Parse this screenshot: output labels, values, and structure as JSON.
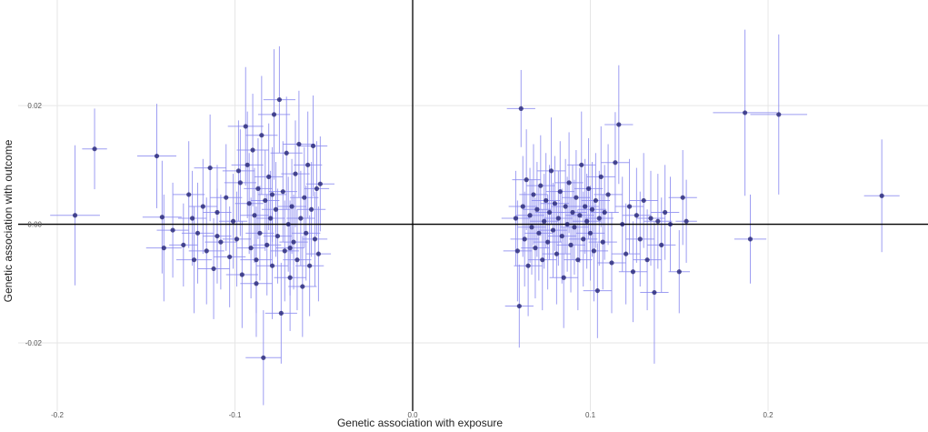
{
  "chart_data": {
    "type": "scatter",
    "title": "",
    "xlabel": "Genetic association with exposure",
    "ylabel": "Genetic association with outcome",
    "xlim": [
      -0.222,
      0.29
    ],
    "ylim": [
      -0.0315,
      0.0378
    ],
    "x_ticks": [
      -0.2,
      -0.1,
      0.0,
      0.1,
      0.2
    ],
    "x_tick_labels": [
      "-0.2",
      "-0.1",
      "0.0",
      "0.1",
      "0.2"
    ],
    "y_ticks": [
      -0.02,
      0.0,
      0.02
    ],
    "y_tick_labels": [
      "-0.02",
      "0.00",
      "0.02"
    ],
    "grid": true,
    "reference_lines": {
      "x": 0,
      "y": 0
    },
    "colors": {
      "point": "#1a1a6e",
      "errorbar": "#8c8cf0",
      "grid": "#e6e6e6",
      "zero_line": "#000000"
    },
    "series": [
      {
        "points": [
          {
            "x": -0.19,
            "y": 0.0015,
            "xerr": 0.014,
            "yerr": 0.0118
          },
          {
            "x": -0.179,
            "y": 0.0127,
            "xerr": 0.007,
            "yerr": 0.0068
          },
          {
            "x": -0.144,
            "y": 0.0115,
            "xerr": 0.011,
            "yerr": 0.0088
          },
          {
            "x": -0.141,
            "y": 0.0012,
            "xerr": 0.011,
            "yerr": 0.0095
          },
          {
            "x": -0.14,
            "y": -0.004,
            "xerr": 0.01,
            "yerr": 0.009
          },
          {
            "x": -0.135,
            "y": -0.001,
            "xerr": 0.009,
            "yerr": 0.008
          },
          {
            "x": -0.129,
            "y": -0.0035,
            "xerr": 0.008,
            "yerr": 0.007
          },
          {
            "x": -0.126,
            "y": 0.005,
            "xerr": 0.009,
            "yerr": 0.009
          },
          {
            "x": -0.124,
            "y": 0.001,
            "xerr": 0.008,
            "yerr": 0.008
          },
          {
            "x": -0.123,
            "y": -0.006,
            "xerr": 0.01,
            "yerr": 0.009
          },
          {
            "x": -0.121,
            "y": -0.0015,
            "xerr": 0.009,
            "yerr": 0.0085
          },
          {
            "x": -0.118,
            "y": 0.003,
            "xerr": 0.008,
            "yerr": 0.008
          },
          {
            "x": -0.116,
            "y": -0.0045,
            "xerr": 0.01,
            "yerr": 0.009
          },
          {
            "x": -0.114,
            "y": 0.0095,
            "xerr": 0.009,
            "yerr": 0.009
          },
          {
            "x": -0.112,
            "y": -0.0075,
            "xerr": 0.009,
            "yerr": 0.0085
          },
          {
            "x": -0.11,
            "y": 0.002,
            "xerr": 0.008,
            "yerr": 0.008
          },
          {
            "x": -0.108,
            "y": -0.003,
            "xerr": 0.009,
            "yerr": 0.008
          },
          {
            "x": -0.105,
            "y": 0.0045,
            "xerr": 0.009,
            "yerr": 0.009
          },
          {
            "x": -0.103,
            "y": -0.0055,
            "xerr": 0.009,
            "yerr": 0.0085
          },
          {
            "x": -0.101,
            "y": 0.0005,
            "xerr": 0.008,
            "yerr": 0.008
          },
          {
            "x": -0.099,
            "y": -0.0025,
            "xerr": 0.008,
            "yerr": 0.008
          },
          {
            "x": -0.097,
            "y": 0.007,
            "xerr": 0.009,
            "yerr": 0.009
          },
          {
            "x": -0.096,
            "y": -0.0085,
            "xerr": 0.009,
            "yerr": 0.009
          },
          {
            "x": -0.094,
            "y": 0.0165,
            "xerr": 0.01,
            "yerr": 0.01
          },
          {
            "x": -0.093,
            "y": 0.01,
            "xerr": 0.009,
            "yerr": 0.009
          },
          {
            "x": -0.092,
            "y": 0.0035,
            "xerr": 0.008,
            "yerr": 0.0085
          },
          {
            "x": -0.091,
            "y": -0.004,
            "xerr": 0.008,
            "yerr": 0.0085
          },
          {
            "x": -0.09,
            "y": 0.0125,
            "xerr": 0.009,
            "yerr": 0.0095
          },
          {
            "x": -0.089,
            "y": 0.0015,
            "xerr": 0.008,
            "yerr": 0.008
          },
          {
            "x": -0.088,
            "y": -0.006,
            "xerr": 0.009,
            "yerr": 0.009
          },
          {
            "x": -0.087,
            "y": 0.006,
            "xerr": 0.008,
            "yerr": 0.0085
          },
          {
            "x": -0.086,
            "y": -0.0015,
            "xerr": 0.008,
            "yerr": 0.008
          },
          {
            "x": -0.085,
            "y": 0.015,
            "xerr": 0.009,
            "yerr": 0.01
          },
          {
            "x": -0.084,
            "y": -0.0225,
            "xerr": 0.01,
            "yerr": 0.008
          },
          {
            "x": -0.083,
            "y": 0.004,
            "xerr": 0.008,
            "yerr": 0.0085
          },
          {
            "x": -0.082,
            "y": -0.0035,
            "xerr": 0.008,
            "yerr": 0.0085
          },
          {
            "x": -0.081,
            "y": 0.008,
            "xerr": 0.008,
            "yerr": 0.009
          },
          {
            "x": -0.08,
            "y": 0.001,
            "xerr": 0.008,
            "yerr": 0.008
          },
          {
            "x": -0.079,
            "y": -0.007,
            "xerr": 0.009,
            "yerr": 0.009
          },
          {
            "x": -0.078,
            "y": 0.0185,
            "xerr": 0.009,
            "yerr": 0.011
          },
          {
            "x": -0.077,
            "y": 0.0025,
            "xerr": 0.008,
            "yerr": 0.008
          },
          {
            "x": -0.076,
            "y": -0.002,
            "xerr": 0.008,
            "yerr": 0.008
          },
          {
            "x": -0.075,
            "y": 0.021,
            "xerr": 0.009,
            "yerr": 0.009
          },
          {
            "x": -0.074,
            "y": -0.015,
            "xerr": 0.009,
            "yerr": 0.0085
          },
          {
            "x": -0.073,
            "y": 0.0055,
            "xerr": 0.008,
            "yerr": 0.0085
          },
          {
            "x": -0.072,
            "y": -0.0045,
            "xerr": 0.008,
            "yerr": 0.0085
          },
          {
            "x": -0.071,
            "y": 0.012,
            "xerr": 0.009,
            "yerr": 0.0095
          },
          {
            "x": -0.07,
            "y": 0.0,
            "xerr": 0.008,
            "yerr": 0.008
          },
          {
            "x": -0.069,
            "y": -0.009,
            "xerr": 0.009,
            "yerr": 0.009
          },
          {
            "x": -0.068,
            "y": 0.003,
            "xerr": 0.008,
            "yerr": 0.008
          },
          {
            "x": -0.067,
            "y": -0.003,
            "xerr": 0.008,
            "yerr": 0.008
          },
          {
            "x": -0.066,
            "y": 0.0085,
            "xerr": 0.008,
            "yerr": 0.009
          },
          {
            "x": -0.065,
            "y": -0.006,
            "xerr": 0.008,
            "yerr": 0.0085
          },
          {
            "x": -0.064,
            "y": 0.0135,
            "xerr": 0.009,
            "yerr": 0.009
          },
          {
            "x": -0.063,
            "y": 0.001,
            "xerr": 0.008,
            "yerr": 0.008
          },
          {
            "x": -0.062,
            "y": -0.0105,
            "xerr": 0.008,
            "yerr": 0.0085
          },
          {
            "x": -0.061,
            "y": 0.0045,
            "xerr": 0.008,
            "yerr": 0.0085
          },
          {
            "x": -0.06,
            "y": -0.0015,
            "xerr": 0.008,
            "yerr": 0.008
          },
          {
            "x": -0.059,
            "y": 0.01,
            "xerr": 0.008,
            "yerr": 0.009
          },
          {
            "x": -0.058,
            "y": -0.007,
            "xerr": 0.008,
            "yerr": 0.0085
          },
          {
            "x": -0.057,
            "y": 0.0025,
            "xerr": 0.008,
            "yerr": 0.008
          },
          {
            "x": -0.056,
            "y": 0.0132,
            "xerr": 0.008,
            "yerr": 0.0085
          },
          {
            "x": -0.055,
            "y": -0.0025,
            "xerr": 0.007,
            "yerr": 0.008
          },
          {
            "x": -0.054,
            "y": 0.006,
            "xerr": 0.007,
            "yerr": 0.008
          },
          {
            "x": -0.053,
            "y": -0.005,
            "xerr": 0.007,
            "yerr": 0.008
          },
          {
            "x": -0.052,
            "y": 0.0068,
            "xerr": 0.008,
            "yerr": 0.008
          },
          {
            "x": -0.11,
            "y": -0.002,
            "xerr": 0.008,
            "yerr": 0.008
          },
          {
            "x": -0.098,
            "y": 0.009,
            "xerr": 0.009,
            "yerr": 0.0085
          },
          {
            "x": -0.088,
            "y": -0.01,
            "xerr": 0.009,
            "yerr": 0.009
          },
          {
            "x": -0.079,
            "y": 0.005,
            "xerr": 0.008,
            "yerr": 0.008
          },
          {
            "x": -0.069,
            "y": -0.004,
            "xerr": 0.008,
            "yerr": 0.008
          },
          {
            "x": 0.058,
            "y": 0.001,
            "xerr": 0.008,
            "yerr": 0.008
          },
          {
            "x": 0.059,
            "y": -0.0045,
            "xerr": 0.008,
            "yerr": 0.0085
          },
          {
            "x": 0.06,
            "y": -0.0138,
            "xerr": 0.008,
            "yerr": 0.007
          },
          {
            "x": 0.061,
            "y": 0.0195,
            "xerr": 0.008,
            "yerr": 0.0065
          },
          {
            "x": 0.062,
            "y": 0.003,
            "xerr": 0.008,
            "yerr": 0.0085
          },
          {
            "x": 0.063,
            "y": -0.0025,
            "xerr": 0.008,
            "yerr": 0.008
          },
          {
            "x": 0.064,
            "y": 0.0075,
            "xerr": 0.008,
            "yerr": 0.0085
          },
          {
            "x": 0.065,
            "y": -0.007,
            "xerr": 0.008,
            "yerr": 0.0085
          },
          {
            "x": 0.066,
            "y": 0.0015,
            "xerr": 0.008,
            "yerr": 0.008
          },
          {
            "x": 0.067,
            "y": -0.0005,
            "xerr": 0.008,
            "yerr": 0.008
          },
          {
            "x": 0.068,
            "y": 0.005,
            "xerr": 0.008,
            "yerr": 0.0085
          },
          {
            "x": 0.069,
            "y": -0.004,
            "xerr": 0.008,
            "yerr": 0.0085
          },
          {
            "x": 0.07,
            "y": 0.0025,
            "xerr": 0.008,
            "yerr": 0.008
          },
          {
            "x": 0.071,
            "y": -0.0015,
            "xerr": 0.008,
            "yerr": 0.008
          },
          {
            "x": 0.072,
            "y": 0.0065,
            "xerr": 0.008,
            "yerr": 0.0085
          },
          {
            "x": 0.073,
            "y": -0.006,
            "xerr": 0.008,
            "yerr": 0.0085
          },
          {
            "x": 0.074,
            "y": 0.0005,
            "xerr": 0.008,
            "yerr": 0.008
          },
          {
            "x": 0.075,
            "y": 0.004,
            "xerr": 0.008,
            "yerr": 0.008
          },
          {
            "x": 0.076,
            "y": -0.003,
            "xerr": 0.008,
            "yerr": 0.008
          },
          {
            "x": 0.077,
            "y": 0.002,
            "xerr": 0.008,
            "yerr": 0.008
          },
          {
            "x": 0.078,
            "y": 0.009,
            "xerr": 0.008,
            "yerr": 0.009
          },
          {
            "x": 0.079,
            "y": -0.001,
            "xerr": 0.008,
            "yerr": 0.008
          },
          {
            "x": 0.08,
            "y": 0.0035,
            "xerr": 0.008,
            "yerr": 0.008
          },
          {
            "x": 0.081,
            "y": -0.005,
            "xerr": 0.008,
            "yerr": 0.0085
          },
          {
            "x": 0.082,
            "y": 0.001,
            "xerr": 0.008,
            "yerr": 0.008
          },
          {
            "x": 0.083,
            "y": 0.0055,
            "xerr": 0.008,
            "yerr": 0.0085
          },
          {
            "x": 0.084,
            "y": -0.002,
            "xerr": 0.008,
            "yerr": 0.008
          },
          {
            "x": 0.085,
            "y": -0.009,
            "xerr": 0.008,
            "yerr": 0.0085
          },
          {
            "x": 0.086,
            "y": 0.003,
            "xerr": 0.008,
            "yerr": 0.008
          },
          {
            "x": 0.087,
            "y": 0.0,
            "xerr": 0.008,
            "yerr": 0.008
          },
          {
            "x": 0.088,
            "y": 0.007,
            "xerr": 0.008,
            "yerr": 0.0085
          },
          {
            "x": 0.089,
            "y": -0.0035,
            "xerr": 0.008,
            "yerr": 0.008
          },
          {
            "x": 0.09,
            "y": 0.002,
            "xerr": 0.008,
            "yerr": 0.008
          },
          {
            "x": 0.091,
            "y": -0.0005,
            "xerr": 0.008,
            "yerr": 0.008
          },
          {
            "x": 0.092,
            "y": 0.0045,
            "xerr": 0.008,
            "yerr": 0.008
          },
          {
            "x": 0.093,
            "y": -0.006,
            "xerr": 0.008,
            "yerr": 0.0085
          },
          {
            "x": 0.094,
            "y": 0.0015,
            "xerr": 0.008,
            "yerr": 0.008
          },
          {
            "x": 0.095,
            "y": 0.01,
            "xerr": 0.008,
            "yerr": 0.009
          },
          {
            "x": 0.096,
            "y": -0.0025,
            "xerr": 0.008,
            "yerr": 0.008
          },
          {
            "x": 0.097,
            "y": 0.003,
            "xerr": 0.008,
            "yerr": 0.008
          },
          {
            "x": 0.098,
            "y": 0.0005,
            "xerr": 0.008,
            "yerr": 0.008
          },
          {
            "x": 0.099,
            "y": 0.006,
            "xerr": 0.008,
            "yerr": 0.0085
          },
          {
            "x": 0.1,
            "y": -0.0015,
            "xerr": 0.008,
            "yerr": 0.008
          },
          {
            "x": 0.101,
            "y": 0.0025,
            "xerr": 0.008,
            "yerr": 0.008
          },
          {
            "x": 0.102,
            "y": -0.0045,
            "xerr": 0.008,
            "yerr": 0.0085
          },
          {
            "x": 0.103,
            "y": 0.004,
            "xerr": 0.008,
            "yerr": 0.008
          },
          {
            "x": 0.104,
            "y": -0.0112,
            "xerr": 0.008,
            "yerr": 0.008
          },
          {
            "x": 0.105,
            "y": 0.001,
            "xerr": 0.008,
            "yerr": 0.008
          },
          {
            "x": 0.106,
            "y": 0.008,
            "xerr": 0.008,
            "yerr": 0.0085
          },
          {
            "x": 0.107,
            "y": -0.003,
            "xerr": 0.008,
            "yerr": 0.008
          },
          {
            "x": 0.108,
            "y": 0.002,
            "xerr": 0.008,
            "yerr": 0.008
          },
          {
            "x": 0.11,
            "y": 0.005,
            "xerr": 0.008,
            "yerr": 0.0085
          },
          {
            "x": 0.112,
            "y": -0.0065,
            "xerr": 0.008,
            "yerr": 0.0085
          },
          {
            "x": 0.114,
            "y": 0.0104,
            "xerr": 0.008,
            "yerr": 0.0085
          },
          {
            "x": 0.116,
            "y": 0.0168,
            "xerr": 0.008,
            "yerr": 0.01
          },
          {
            "x": 0.118,
            "y": 0.0,
            "xerr": 0.008,
            "yerr": 0.008
          },
          {
            "x": 0.12,
            "y": -0.005,
            "xerr": 0.008,
            "yerr": 0.0085
          },
          {
            "x": 0.122,
            "y": 0.003,
            "xerr": 0.008,
            "yerr": 0.008
          },
          {
            "x": 0.124,
            "y": -0.008,
            "xerr": 0.008,
            "yerr": 0.0085
          },
          {
            "x": 0.126,
            "y": 0.0015,
            "xerr": 0.008,
            "yerr": 0.008
          },
          {
            "x": 0.128,
            "y": -0.0025,
            "xerr": 0.008,
            "yerr": 0.008
          },
          {
            "x": 0.13,
            "y": 0.004,
            "xerr": 0.008,
            "yerr": 0.008
          },
          {
            "x": 0.132,
            "y": -0.006,
            "xerr": 0.008,
            "yerr": 0.0085
          },
          {
            "x": 0.134,
            "y": 0.001,
            "xerr": 0.008,
            "yerr": 0.008
          },
          {
            "x": 0.136,
            "y": -0.0115,
            "xerr": 0.008,
            "yerr": 0.012
          },
          {
            "x": 0.138,
            "y": 0.0005,
            "xerr": 0.008,
            "yerr": 0.008
          },
          {
            "x": 0.14,
            "y": -0.0035,
            "xerr": 0.008,
            "yerr": 0.008
          },
          {
            "x": 0.142,
            "y": 0.002,
            "xerr": 0.008,
            "yerr": 0.008
          },
          {
            "x": 0.145,
            "y": 0.0,
            "xerr": 0.008,
            "yerr": 0.008
          },
          {
            "x": 0.15,
            "y": -0.008,
            "xerr": 0.006,
            "yerr": 0.007
          },
          {
            "x": 0.152,
            "y": 0.0045,
            "xerr": 0.008,
            "yerr": 0.008
          },
          {
            "x": 0.154,
            "y": 0.0005,
            "xerr": 0.006,
            "yerr": 0.007
          },
          {
            "x": 0.187,
            "y": 0.0188,
            "xerr": 0.018,
            "yerr": 0.014
          },
          {
            "x": 0.19,
            "y": -0.0025,
            "xerr": 0.009,
            "yerr": 0.0075
          },
          {
            "x": 0.206,
            "y": 0.0185,
            "xerr": 0.016,
            "yerr": 0.0135
          },
          {
            "x": 0.264,
            "y": 0.0048,
            "xerr": 0.01,
            "yerr": 0.0095
          }
        ]
      }
    ]
  }
}
